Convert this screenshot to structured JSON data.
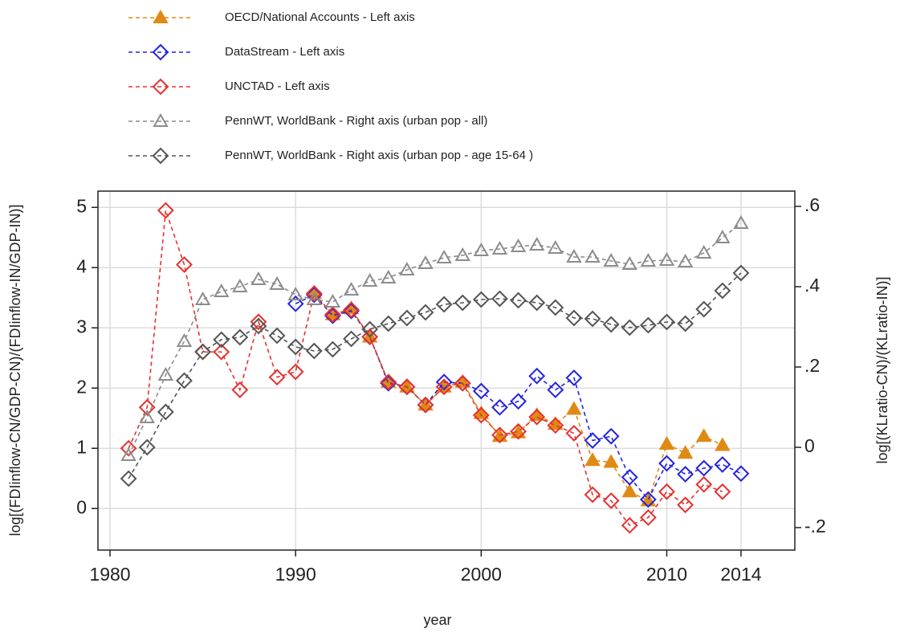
{
  "chart_data": {
    "type": "line",
    "x_label": "year",
    "y_label": "log[(FDIinflow-CN/GDP-CN)/(FDIinflow-IN/GDP-IN)]",
    "y2_label": "log[(KLratio-CN)/(KLratio-IN)]",
    "x": [
      1981,
      1982,
      1983,
      1984,
      1985,
      1986,
      1987,
      1988,
      1989,
      1990,
      1991,
      1992,
      1993,
      1994,
      1995,
      1996,
      1997,
      1998,
      1999,
      2000,
      2001,
      2002,
      2003,
      2004,
      2005,
      2006,
      2007,
      2008,
      2009,
      2010,
      2011,
      2012,
      2013,
      2014
    ],
    "xlim": [
      1979.35,
      2016.9
    ],
    "xticks": [
      1980,
      1990,
      2000,
      2010,
      2014
    ],
    "ylim": [
      -0.69,
      5.27
    ],
    "yticks": [
      0,
      1,
      2,
      3,
      4,
      5
    ],
    "y2lim": [
      -0.256,
      0.638
    ],
    "y2ticks": [
      {
        "value": -0.2,
        "label": "-.2"
      },
      0,
      {
        "value": 0.2,
        "label": ".2"
      },
      {
        "value": 0.4,
        "label": ".4"
      },
      {
        "value": 0.6,
        "label": ".6"
      }
    ],
    "grid": true,
    "series": [
      {
        "name": "OECD/National Accounts - Left axis",
        "color": "#df8a12",
        "marker": "triangle",
        "filled": true,
        "values": [
          null,
          null,
          null,
          null,
          null,
          null,
          null,
          null,
          null,
          null,
          3.58,
          3.22,
          3.32,
          2.85,
          2.1,
          2.02,
          1.72,
          2.02,
          2.1,
          1.58,
          1.2,
          1.26,
          1.55,
          1.4,
          1.65,
          0.8,
          0.77,
          0.28,
          0.13,
          1.07,
          0.92,
          1.2,
          1.05,
          null
        ]
      },
      {
        "name": "DataStream - Left axis",
        "color": "#2424e0",
        "marker": "diamond",
        "filled": false,
        "values": [
          null,
          null,
          null,
          null,
          null,
          null,
          null,
          null,
          null,
          3.4,
          3.55,
          3.2,
          3.28,
          2.85,
          2.08,
          2.02,
          1.72,
          2.1,
          2.08,
          1.95,
          1.68,
          1.78,
          2.2,
          1.97,
          2.17,
          1.13,
          1.2,
          0.52,
          0.15,
          0.75,
          0.57,
          0.67,
          0.73,
          0.58
        ]
      },
      {
        "name": "UNCTAD - Left axis",
        "color": "#e83030",
        "marker": "diamond",
        "filled": false,
        "values": [
          1.0,
          1.68,
          4.95,
          4.05,
          2.6,
          2.6,
          1.97,
          3.1,
          2.18,
          2.27,
          3.57,
          3.22,
          3.3,
          2.85,
          2.1,
          2.02,
          1.72,
          2.02,
          2.08,
          1.55,
          1.22,
          1.28,
          1.52,
          1.38,
          1.25,
          0.23,
          0.13,
          -0.28,
          -0.15,
          0.28,
          0.06,
          0.4,
          0.28,
          null
        ]
      },
      {
        "name": "PennWT, WorldBank - Right axis (urban pop - all)",
        "color": "#8c8c8c",
        "marker": "triangle",
        "filled": false,
        "axis": "y2",
        "values": [
          -0.02,
          0.074,
          0.18,
          0.264,
          0.368,
          0.388,
          0.4,
          0.418,
          0.406,
          0.38,
          0.368,
          0.362,
          0.392,
          0.414,
          0.422,
          0.442,
          0.458,
          0.472,
          0.478,
          0.49,
          0.494,
          0.5,
          0.504,
          0.496,
          0.474,
          0.474,
          0.464,
          0.456,
          0.464,
          0.466,
          0.462,
          0.484,
          0.522,
          0.558
        ]
      },
      {
        "name": "PennWT, WorldBank - Right axis (urban pop - age 15-64 )",
        "color": "#555555",
        "marker": "diamond",
        "filled": false,
        "axis": "y2",
        "values": [
          -0.078,
          0.0,
          0.088,
          0.166,
          0.238,
          0.268,
          0.274,
          0.302,
          0.278,
          0.25,
          0.24,
          0.244,
          0.27,
          0.294,
          0.308,
          0.322,
          0.336,
          0.356,
          0.36,
          0.368,
          0.37,
          0.366,
          0.36,
          0.348,
          0.322,
          0.32,
          0.306,
          0.298,
          0.304,
          0.312,
          0.308,
          0.344,
          0.39,
          0.434
        ]
      }
    ]
  }
}
